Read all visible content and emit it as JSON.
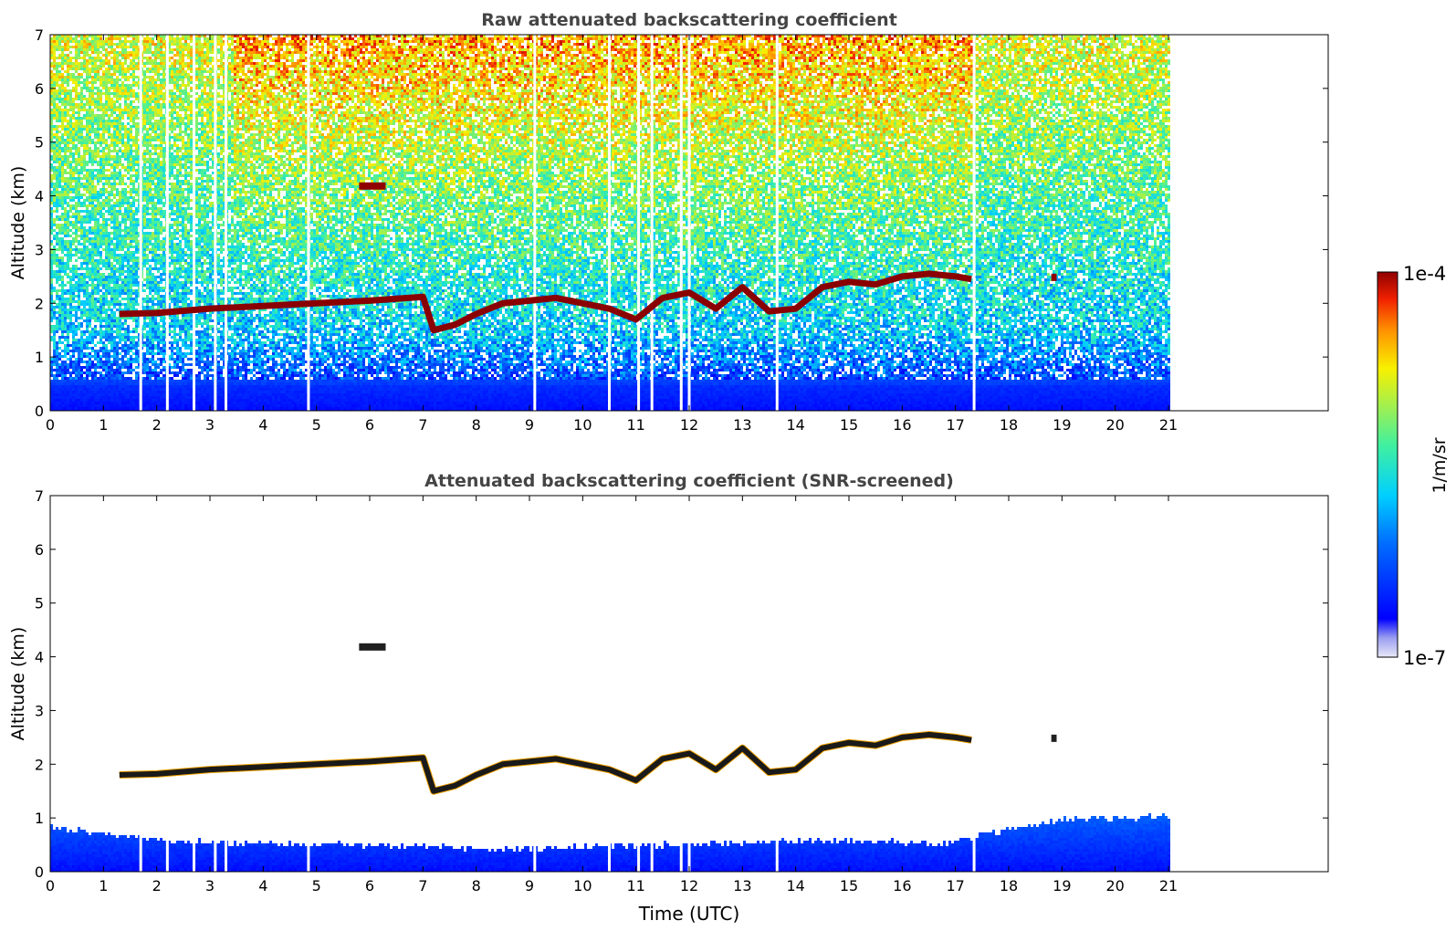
{
  "chart_data": [
    {
      "type": "heatmap",
      "title": "Raw attenuated backscattering coefficient",
      "xlabel": "",
      "ylabel": "Altitude (km)",
      "xlim": [
        0,
        24
      ],
      "ylim": [
        0,
        7
      ],
      "xticks": [
        "0",
        "1",
        "2",
        "3",
        "4",
        "5",
        "6",
        "7",
        "8",
        "9",
        "10",
        "11",
        "12",
        "13",
        "14",
        "15",
        "16",
        "17",
        "18",
        "19",
        "20",
        "21"
      ],
      "yticks": [
        "0",
        "1",
        "2",
        "3",
        "4",
        "5",
        "6",
        "7"
      ],
      "data_time_range": [
        0,
        21
      ],
      "scale": "log",
      "layers": [
        {
          "feature": "boundary-layer-top",
          "x": [
            1.3,
            2.0,
            3.0,
            4.0,
            5.0,
            6.0,
            7.0,
            7.2,
            7.6,
            8.0,
            8.5,
            9.0,
            9.5,
            10.0,
            10.5,
            11.0,
            11.5,
            12.0,
            12.5,
            13.0,
            13.5,
            14.0,
            14.5,
            15.0,
            15.5,
            16.0,
            16.5,
            17.0,
            17.3
          ],
          "y": [
            1.8,
            1.82,
            1.9,
            1.95,
            2.0,
            2.05,
            2.12,
            1.5,
            1.6,
            1.8,
            2.0,
            2.05,
            2.1,
            2.0,
            1.9,
            1.7,
            2.1,
            2.2,
            1.9,
            2.3,
            1.85,
            1.9,
            2.3,
            2.4,
            2.35,
            2.5,
            2.55,
            2.5,
            2.45
          ]
        },
        {
          "feature": "cloud",
          "x": [
            5.8,
            6.3
          ],
          "y": [
            4.1,
            4.2
          ]
        },
        {
          "feature": "cloud",
          "x": [
            18.8,
            18.9
          ],
          "y": [
            2.5,
            2.5
          ]
        }
      ],
      "gaps_x": [
        1.7,
        2.2,
        2.7,
        3.1,
        3.3,
        4.85,
        9.1,
        10.5,
        11.05,
        11.3,
        11.85,
        12.0,
        13.65,
        17.35
      ]
    },
    {
      "type": "heatmap",
      "title": "Attenuated backscattering coefficient (SNR-screened)",
      "xlabel": "Time (UTC)",
      "ylabel": "Altitude (km)",
      "xlim": [
        0,
        24
      ],
      "ylim": [
        0,
        7
      ],
      "xticks": [
        "0",
        "1",
        "2",
        "3",
        "4",
        "5",
        "6",
        "7",
        "8",
        "9",
        "10",
        "11",
        "12",
        "13",
        "14",
        "15",
        "16",
        "17",
        "18",
        "19",
        "20",
        "21"
      ],
      "yticks": [
        "0",
        "1",
        "2",
        "3",
        "4",
        "5",
        "6",
        "7"
      ],
      "data_time_range": [
        0,
        21
      ],
      "scale": "log",
      "near_surface_signal_top": [
        0.85,
        0.6,
        0.55,
        0.5,
        0.45,
        0.5,
        0.55,
        0.6,
        0.55,
        1.0,
        1.05
      ]
    }
  ],
  "colorbar": {
    "label": "1/m/sr",
    "max_label": "1e-4",
    "min_label": "1e-7",
    "colormap": "jet",
    "under_color": "#e8e8f8"
  }
}
